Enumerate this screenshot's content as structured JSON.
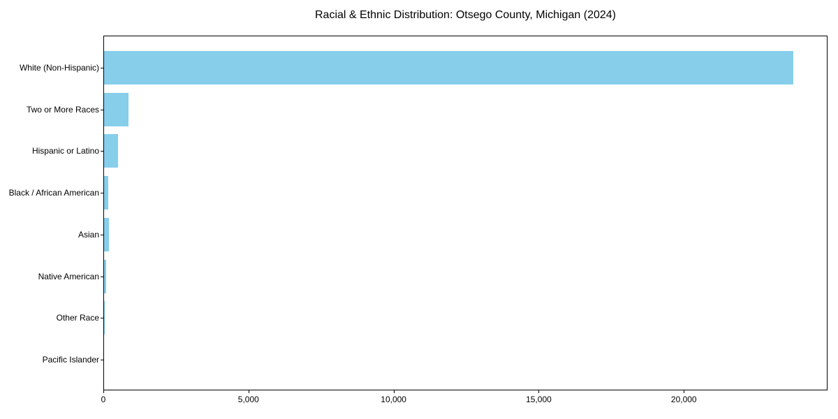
{
  "figure": {
    "background": "#ffffff",
    "axis_color": "#000000",
    "text_color": "#000000"
  },
  "chart_data": {
    "type": "bar",
    "orientation": "horizontal",
    "title": "Racial & Ethnic Distribution: Otsego County, Michigan (2024)",
    "categories": [
      "White (Non-Hispanic)",
      "Two or More Races",
      "Hispanic or Latino",
      "Black / African American",
      "Asian",
      "Native American",
      "Other Race",
      "Pacific Islander"
    ],
    "values": [
      23760,
      860,
      505,
      175,
      185,
      95,
      30,
      8
    ],
    "bar_color": "#87CEEB",
    "xlabel": "",
    "ylabel": "",
    "xlim": [
      0,
      24950
    ],
    "xticks": [
      0,
      5000,
      10000,
      15000,
      20000
    ],
    "xtick_labels": [
      "0",
      "5,000",
      "10,000",
      "15,000",
      "20,000"
    ],
    "grid": false,
    "legend": null
  }
}
